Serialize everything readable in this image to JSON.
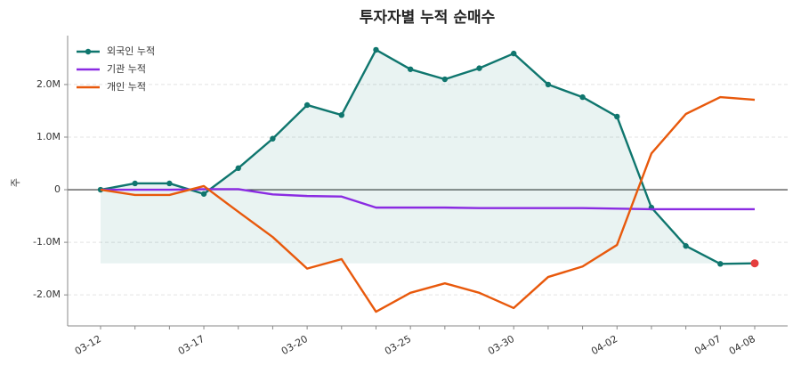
{
  "chart_data": {
    "type": "line",
    "title": "투자자별 누적 순매수",
    "ylabel": "주",
    "categories": [
      "03-12",
      null,
      null,
      "03-17",
      null,
      null,
      "03-20",
      null,
      null,
      "03-25",
      null,
      null,
      "03-30",
      null,
      null,
      "04-02",
      null,
      null,
      "04-07",
      "04-08"
    ],
    "series": [
      {
        "name": "외국인 누적",
        "color": "#0f766e",
        "markers": true,
        "fill": true,
        "values": [
          0,
          120000,
          120000,
          -80000,
          410000,
          970000,
          1610000,
          1420000,
          2660000,
          2290000,
          2100000,
          2310000,
          2590000,
          2000000,
          1760000,
          1390000,
          -340000,
          -1070000,
          -1410000,
          -1400000
        ]
      },
      {
        "name": "기관 누적",
        "color": "#8a2be2",
        "values": [
          0,
          0,
          0,
          10000,
          10000,
          -90000,
          -120000,
          -130000,
          -340000,
          -340000,
          -340000,
          -350000,
          -350000,
          -350000,
          -350000,
          -360000,
          -370000,
          -370000,
          -370000,
          -370000
        ]
      },
      {
        "name": "개인 누적",
        "color": "#e8590c",
        "values": [
          0,
          -100000,
          -100000,
          70000,
          -420000,
          -900000,
          -1500000,
          -1320000,
          -2320000,
          -1960000,
          -1780000,
          -1960000,
          -2250000,
          -1660000,
          -1460000,
          -1050000,
          690000,
          1440000,
          1760000,
          1710000
        ]
      }
    ],
    "last_point_color": "#e53e3e",
    "ylim": [
      -2590000,
      2930000
    ],
    "yticks": [
      {
        "value": -2000000,
        "label": "-2.0M"
      },
      {
        "value": -1000000,
        "label": "-1.0M"
      },
      0,
      {
        "value": 1000000,
        "label": "1.0M"
      },
      {
        "value": 2000000,
        "label": "2.0M"
      }
    ],
    "grid": true,
    "legend": "upper left"
  }
}
